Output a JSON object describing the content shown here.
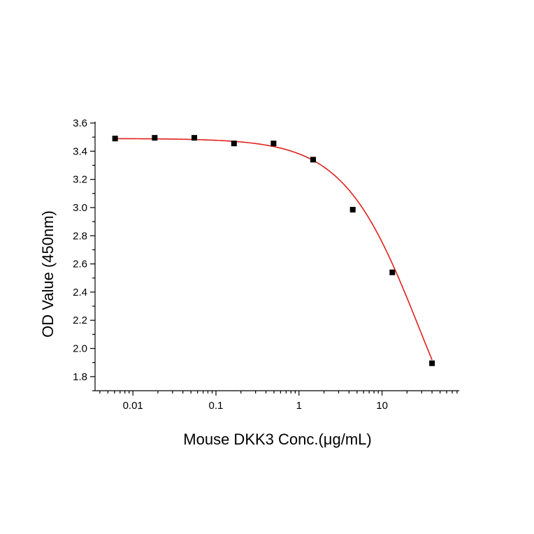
{
  "chart_data": {
    "type": "scatter",
    "xlabel": "Mouse DKK3 Conc.(μg/mL)",
    "ylabel": "OD Value (450nm)",
    "xscale": "log",
    "xlim": [
      0.0035,
      85
    ],
    "ylim": [
      1.7,
      3.6
    ],
    "x_ticks": [
      0.01,
      0.1,
      1,
      10
    ],
    "x_tick_labels": [
      "0.01",
      "0.1",
      "1",
      "10"
    ],
    "y_ticks": [
      1.8,
      2.0,
      2.2,
      2.4,
      2.6,
      2.8,
      3.0,
      3.2,
      3.4,
      3.6
    ],
    "y_tick_labels": [
      "1.8",
      "2.0",
      "2.2",
      "2.4",
      "2.6",
      "2.8",
      "3.0",
      "3.2",
      "3.4",
      "3.6"
    ],
    "grid": false,
    "legend": "none",
    "series": [
      {
        "x": [
          0.0061,
          0.0183,
          0.0549,
          0.165,
          0.494,
          1.48,
          4.44,
          13.3,
          40
        ],
        "y": [
          3.49,
          3.495,
          3.495,
          3.455,
          3.455,
          3.34,
          2.985,
          2.54,
          1.895
        ],
        "marker": "square",
        "color": "#000000"
      }
    ],
    "fit_curve": {
      "model": "4PL",
      "top": 3.49,
      "bottom": 0.8,
      "ec50": 28,
      "hill": 0.95,
      "x_range": [
        0.0061,
        40
      ],
      "color": "#e0201a"
    }
  }
}
